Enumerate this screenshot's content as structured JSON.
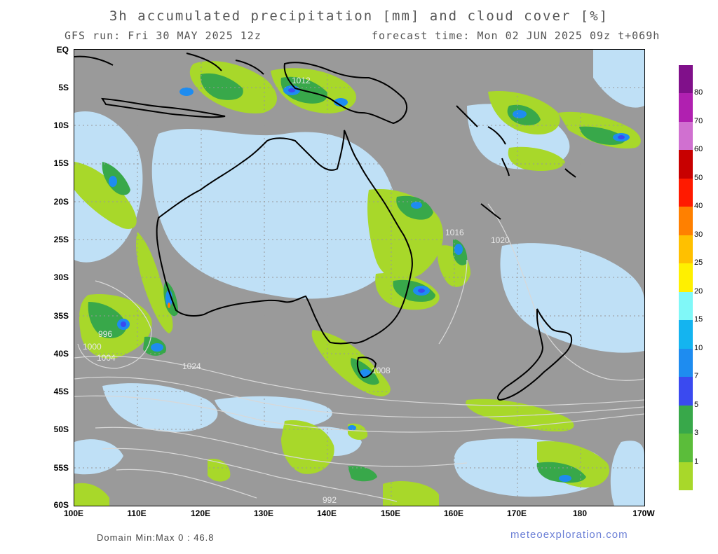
{
  "header": {
    "title": "3h accumulated precipitation [mm] and cloud cover [%]",
    "run": "GFS run: Fri 30 MAY 2025 12z",
    "forecast": "forecast time: Mon 02 JUN 2025 09z  t+069h"
  },
  "axes": {
    "lat_labels": [
      "EQ",
      "5S",
      "10S",
      "15S",
      "20S",
      "25S",
      "30S",
      "35S",
      "40S",
      "45S",
      "50S",
      "55S",
      "60S"
    ],
    "lon_labels": [
      "100E",
      "110E",
      "120E",
      "130E",
      "140E",
      "150E",
      "160E",
      "170E",
      "180",
      "170W"
    ]
  },
  "legend": {
    "levels": [
      "1",
      "3",
      "5",
      "7",
      "10",
      "15",
      "20",
      "25",
      "30",
      "40",
      "50",
      "60",
      "70",
      "80"
    ],
    "colors": [
      "#a8d82a",
      "#5bbd3a",
      "#38a84a",
      "#3a4af0",
      "#1e8cf0",
      "#14b4f0",
      "#80f8f8",
      "#fff000",
      "#ffc000",
      "#ff8000",
      "#ff1a00",
      "#c80000",
      "#d070d0",
      "#b020b0",
      "#80108a"
    ]
  },
  "isobar_labels": [
    "1012",
    "1016",
    "1020",
    "1008",
    "1004",
    "1000",
    "996",
    "992",
    "1024"
  ],
  "footer": {
    "domain": "Domain Min:Max 0 : 46.8",
    "credit": "meteoexploration.com"
  }
}
